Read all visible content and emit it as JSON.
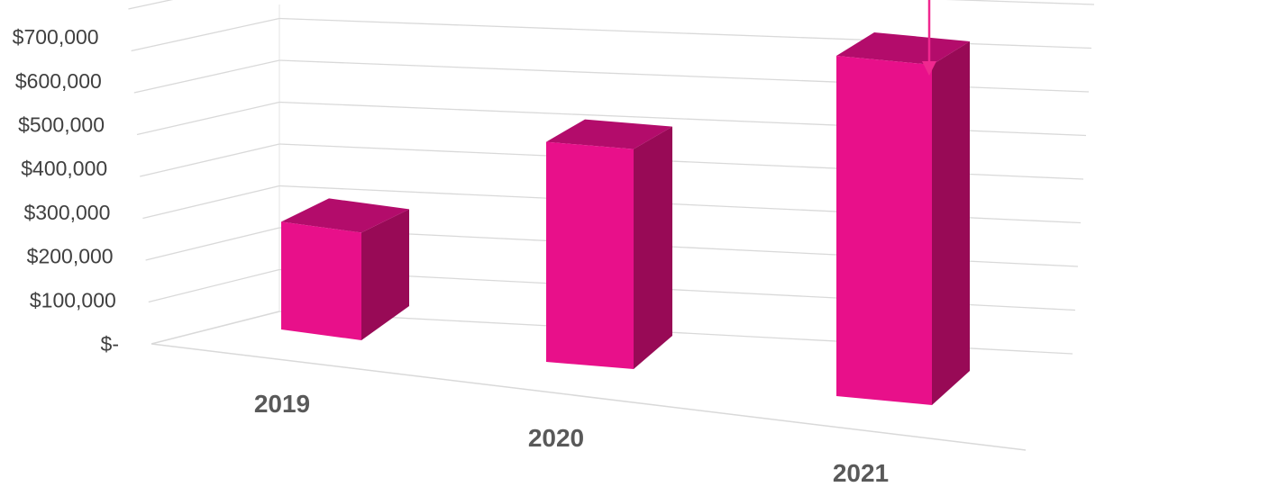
{
  "chart_data": {
    "type": "bar",
    "categories": [
      "2019",
      "2020",
      "2021"
    ],
    "values": [
      230000,
      470000,
      700000
    ],
    "ylim": [
      0,
      800000
    ],
    "y_ticks": [
      "$-",
      "$100,000",
      "$200,000",
      "$300,000",
      "$400,000",
      "$500,000",
      "$600,000",
      "$700,000"
    ],
    "title": "",
    "xlabel": "",
    "ylabel": "",
    "grid": true,
    "legend": "none",
    "style": "3d-column",
    "annotation": "arrow pointing to the 2021 column"
  },
  "colors": {
    "bar_front": "#e8108a",
    "bar_top": "#b30c6b",
    "bar_side": "#980a56",
    "arrow": "#f0288f",
    "grid": "#d9d9d9"
  }
}
